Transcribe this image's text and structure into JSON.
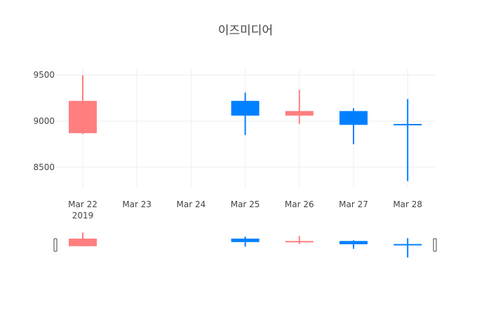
{
  "chart_data": {
    "type": "candlestick",
    "title": "이즈미디어",
    "x_tick_labels": [
      "Mar 22",
      "Mar 23",
      "Mar 24",
      "Mar 25",
      "Mar 26",
      "Mar 27",
      "Mar 28"
    ],
    "x_year_label": "2019",
    "y_ticks": [
      8500,
      9000,
      9500
    ],
    "ylim": [
      8280,
      9570
    ],
    "grid": true,
    "colors": {
      "increasing": "#ff7f7f",
      "decreasing": "#0080ff"
    },
    "candles": [
      {
        "date": "Mar 22",
        "open": 8870,
        "high": 9500,
        "low": 8860,
        "close": 9220,
        "direction": "increasing"
      },
      {
        "date": "Mar 25",
        "open": 9220,
        "high": 9310,
        "low": 8850,
        "close": 9060,
        "direction": "decreasing"
      },
      {
        "date": "Mar 26",
        "open": 9060,
        "high": 9340,
        "low": 8970,
        "close": 9110,
        "direction": "increasing"
      },
      {
        "date": "Mar 27",
        "open": 9110,
        "high": 9140,
        "low": 8750,
        "close": 8960,
        "direction": "decreasing"
      },
      {
        "date": "Mar 28",
        "open": 8970,
        "high": 9240,
        "low": 8350,
        "close": 8960,
        "direction": "decreasing"
      }
    ],
    "rangeslider": true
  }
}
